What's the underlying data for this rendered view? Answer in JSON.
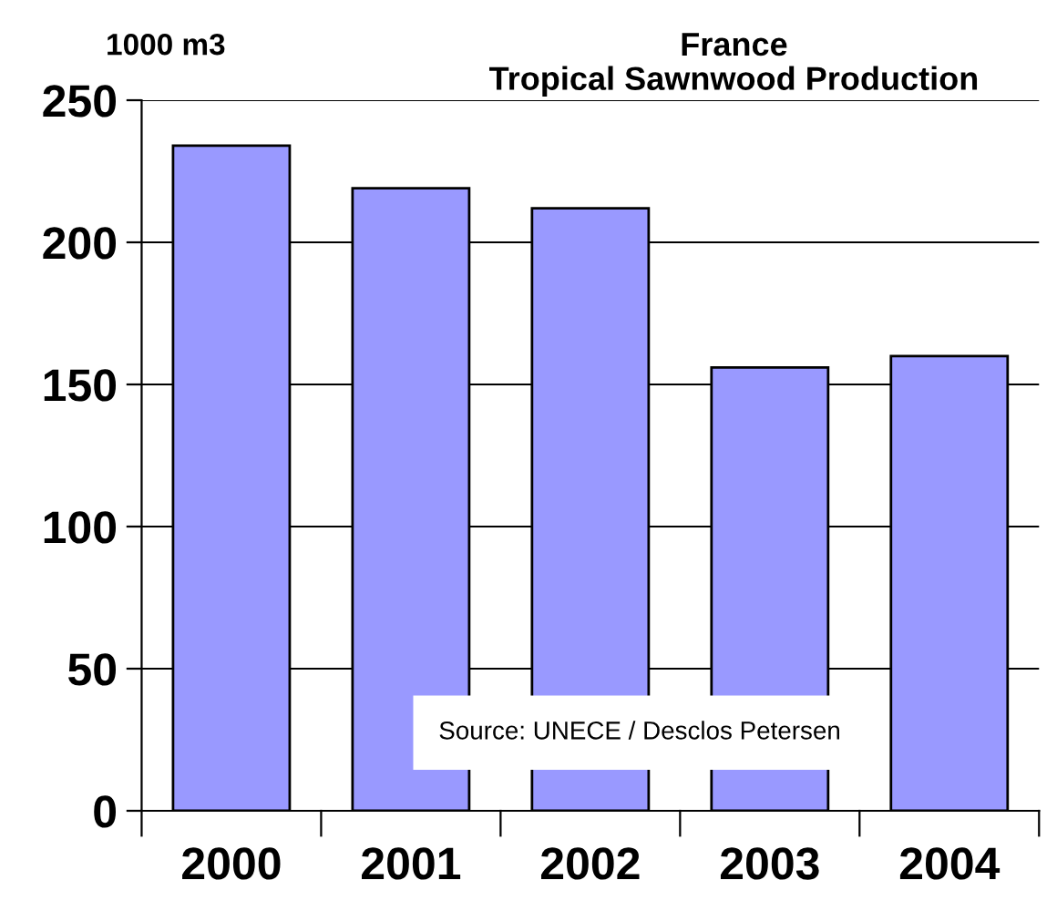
{
  "chart_data": {
    "type": "bar",
    "title": "France\nTropical Sawnwood Production",
    "ylabel": "1000 m3",
    "categories": [
      "2000",
      "2001",
      "2002",
      "2003",
      "2004"
    ],
    "values": [
      234,
      219,
      212,
      156,
      160
    ],
    "color": "#9999ff",
    "ylim": [
      0,
      250
    ],
    "yticks": [
      0,
      50,
      100,
      150,
      200,
      250
    ],
    "grid": "y",
    "annotations": [
      "Source: UNECE / Desclos Petersen"
    ]
  }
}
